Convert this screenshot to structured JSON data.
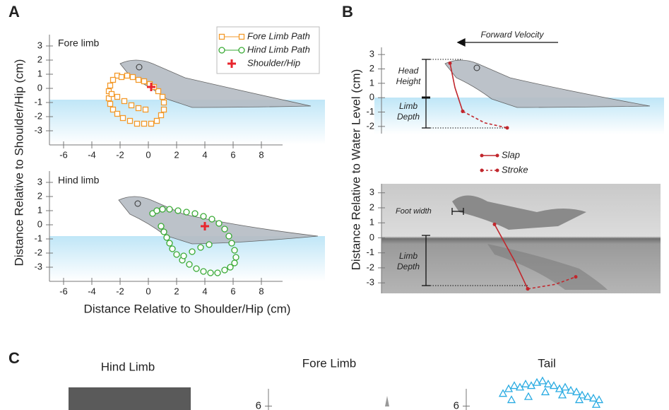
{
  "figure": {
    "panel_labels": [
      "A",
      "B",
      "C"
    ],
    "a_ylabel": "Distance Relative to Shoulder/Hip (cm)",
    "a_xlabel": "Distance Relative to Shoulder/Hip (cm)",
    "b_ylabel": "Distance Relative to Water Level (cm)"
  },
  "chart_data": [
    {
      "type": "scatter",
      "title": "Fore limb",
      "xlim": [
        -7,
        9.5
      ],
      "ylim": [
        -4,
        3.8
      ],
      "xticks": [
        -6,
        -4,
        -2,
        0,
        2,
        4,
        6,
        8
      ],
      "yticks": [
        -3,
        -2,
        -1,
        0,
        1,
        2,
        3
      ],
      "series": [
        {
          "name": "Fore Limb Path",
          "color": "#f39a2b",
          "marker": "square",
          "x": [
            -2.2,
            -2.5,
            -2.7,
            -2.8,
            -2.8,
            -2.7,
            -2.5,
            -2.2,
            -1.8,
            -1.3,
            -0.8,
            -0.3,
            0.2,
            0.6,
            0.9,
            1.1,
            1.1,
            1.0,
            0.7,
            0.4,
            0.1,
            -0.3,
            -0.7,
            -1.1,
            -1.5,
            -1.9,
            -2.6,
            -2.2,
            -1.7,
            -1.2,
            -0.7,
            -0.2
          ],
          "values": [
            0.9,
            0.6,
            0.2,
            -0.2,
            -0.7,
            -1.1,
            -1.5,
            -1.8,
            -2.1,
            -2.3,
            -2.5,
            -2.5,
            -2.5,
            -2.3,
            -1.9,
            -1.5,
            -1.0,
            -0.6,
            -0.2,
            0.1,
            0.3,
            0.5,
            0.6,
            0.8,
            0.9,
            0.8,
            -0.4,
            -0.6,
            -0.9,
            -1.2,
            -1.4,
            -1.5
          ]
        },
        {
          "name": "Shoulder/Hip",
          "color": "#e8262d",
          "marker": "plus",
          "x": [
            0.2
          ],
          "values": [
            0.1
          ]
        }
      ]
    },
    {
      "type": "scatter",
      "title": "Hind limb",
      "xlim": [
        -7,
        9.5
      ],
      "ylim": [
        -4,
        3.8
      ],
      "xticks": [
        -6,
        -4,
        -2,
        0,
        2,
        4,
        6,
        8
      ],
      "yticks": [
        -3,
        -2,
        -1,
        0,
        1,
        2,
        3
      ],
      "series": [
        {
          "name": "Hind Limb Path",
          "color": "#3aaa35",
          "marker": "circle",
          "x": [
            0.3,
            0.6,
            1.0,
            1.5,
            2.1,
            2.7,
            3.3,
            3.9,
            4.5,
            5.0,
            5.4,
            5.7,
            5.9,
            6.1,
            6.2,
            6.1,
            5.8,
            5.4,
            4.9,
            4.4,
            3.9,
            3.4,
            2.9,
            2.4,
            2.0,
            1.7,
            1.5,
            1.3,
            1.1,
            0.9,
            2.5,
            3.1,
            3.7,
            4.3
          ],
          "values": [
            0.8,
            1.0,
            1.1,
            1.1,
            1.0,
            0.9,
            0.8,
            0.6,
            0.4,
            0.1,
            -0.3,
            -0.8,
            -1.3,
            -1.8,
            -2.3,
            -2.7,
            -3.0,
            -3.2,
            -3.4,
            -3.4,
            -3.3,
            -3.1,
            -2.8,
            -2.5,
            -2.1,
            -1.7,
            -1.3,
            -0.9,
            -0.5,
            -0.1,
            -2.2,
            -1.9,
            -1.6,
            -1.4
          ]
        },
        {
          "name": "Shoulder/Hip",
          "color": "#e8262d",
          "marker": "plus",
          "x": [
            4.0
          ],
          "values": [
            -0.1
          ]
        }
      ]
    },
    {
      "type": "line",
      "xlim": [
        0,
        20
      ],
      "ylim": [
        -2.5,
        3.5
      ],
      "yticks": [
        -2,
        -1,
        0,
        1,
        2,
        3
      ],
      "annotations": [
        "Forward Velocity",
        "Head Height",
        "Limb Depth"
      ],
      "series": [
        {
          "name": "Slap",
          "color": "#c1272d",
          "line": "solid",
          "x": [
            5.35,
            5.7,
            6.25
          ],
          "values": [
            2.4,
            0.7,
            -0.95
          ]
        },
        {
          "name": "Stroke",
          "color": "#c1272d",
          "line": "dashed",
          "x": [
            6.25,
            7.8,
            9.4
          ],
          "values": [
            -0.95,
            -1.75,
            -2.1
          ]
        }
      ]
    },
    {
      "type": "line",
      "xlim": [
        0,
        20
      ],
      "ylim": [
        -3.7,
        3.6
      ],
      "yticks": [
        -3,
        -2,
        -1,
        0,
        1,
        2,
        3
      ],
      "annotations": [
        "Foot width",
        "Limb Depth"
      ],
      "series": [
        {
          "name": "Slap",
          "color": "#c1272d",
          "line": "solid",
          "x": [
            8.5,
            9.9,
            10.85
          ],
          "values": [
            0.9,
            -1.5,
            -3.4
          ]
        },
        {
          "name": "Stroke",
          "color": "#c1272d",
          "line": "dashed",
          "x": [
            10.85,
            12.8,
            14.25
          ],
          "values": [
            -3.4,
            -3.1,
            -2.6
          ]
        }
      ]
    },
    {
      "type": "image",
      "title": "Hind Limb"
    },
    {
      "type": "line",
      "title": "Fore Limb",
      "ylim": [
        5.75,
        8.0
      ],
      "yticks": [
        6
      ]
    },
    {
      "type": "scatter",
      "title": "Tail",
      "xlim": [
        0,
        14
      ],
      "ylim": [
        5.75,
        8.0
      ],
      "yticks": [
        6
      ],
      "series": [
        {
          "name": null,
          "color": "#29abe2",
          "marker": "triangle",
          "x": [
            2.6,
            3.0,
            3.4,
            3.8,
            4.2,
            4.6,
            5.0,
            5.4,
            5.8,
            6.2,
            6.6,
            7.0,
            7.4,
            7.8,
            8.2,
            8.6,
            9.0,
            9.4,
            3.2,
            4.4,
            5.6,
            6.8,
            8.0,
            9.2
          ],
          "values": [
            6.8,
            7.1,
            7.3,
            7.2,
            7.4,
            7.3,
            7.5,
            7.6,
            7.4,
            7.3,
            7.1,
            7.2,
            7.0,
            6.9,
            6.7,
            6.6,
            6.5,
            6.4,
            6.4,
            6.6,
            6.9,
            6.7,
            6.4,
            6.1
          ]
        }
      ]
    }
  ]
}
